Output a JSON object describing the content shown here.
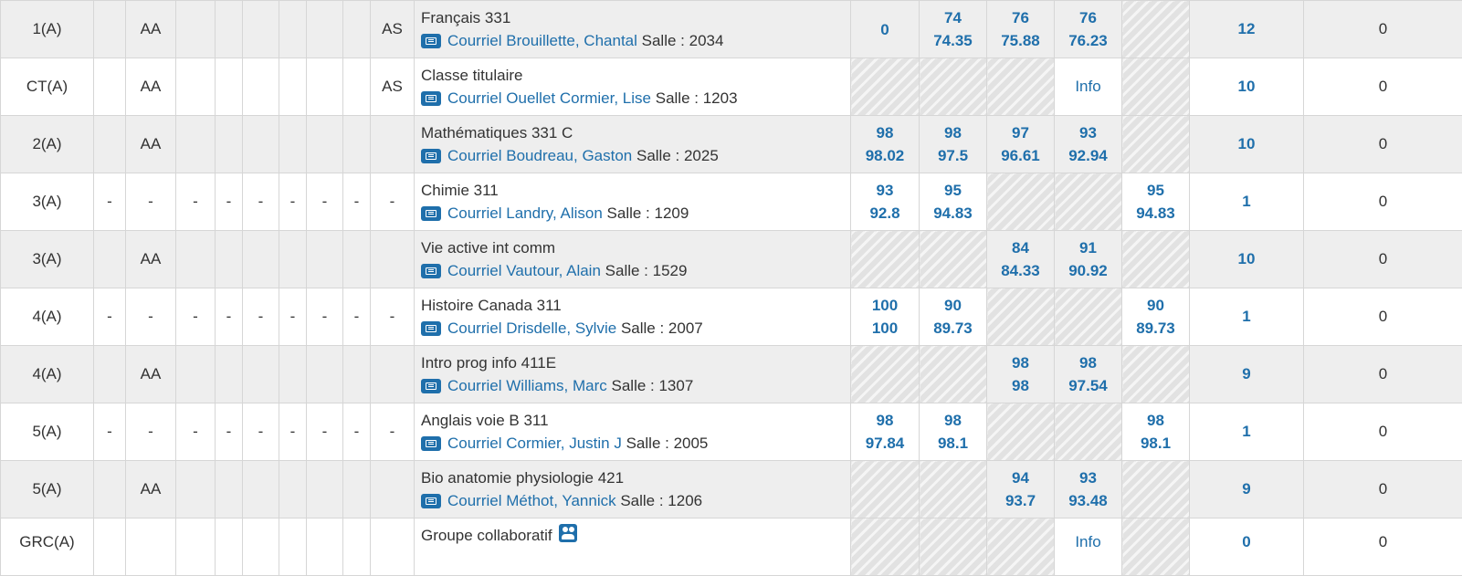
{
  "rows": [
    {
      "period": "1(A)",
      "c1": "",
      "c2": "AA",
      "c3": "",
      "c4": "",
      "c5": "",
      "c6": "",
      "c7": "",
      "c8": "",
      "c9": "AS",
      "course": "Français 331",
      "mail": "Courriel",
      "teacher": "Brouillette, Chantal",
      "room": "Salle : 2034",
      "g1a": "0",
      "g1b": "",
      "g2a": "74",
      "g2b": "74.35",
      "g3a": "76",
      "g3b": "75.88",
      "g4a": "76",
      "g4b": "76.23",
      "g5a": "",
      "g5b": "",
      "stat": "12",
      "last": "0"
    },
    {
      "period": "CT(A)",
      "c1": "",
      "c2": "AA",
      "c3": "",
      "c4": "",
      "c5": "",
      "c6": "",
      "c7": "",
      "c8": "",
      "c9": "AS",
      "course": "Classe titulaire",
      "mail": "Courriel",
      "teacher": "Ouellet Cormier, Lise",
      "room": "Salle : 1203",
      "info": "Info",
      "stat": "10",
      "last": "0"
    },
    {
      "period": "2(A)",
      "c1": "",
      "c2": "AA",
      "c3": "",
      "c4": "",
      "c5": "",
      "c6": "",
      "c7": "",
      "c8": "",
      "c9": "",
      "course": "Mathématiques 331 C",
      "mail": "Courriel",
      "teacher": "Boudreau, Gaston",
      "room": "Salle : 2025",
      "g1a": "98",
      "g1b": "98.02",
      "g2a": "98",
      "g2b": "97.5",
      "g3a": "97",
      "g3b": "96.61",
      "g4a": "93",
      "g4b": "92.94",
      "stat": "10",
      "last": "0"
    },
    {
      "period": "3(A)",
      "c1": "-",
      "c2": "-",
      "c3": "-",
      "c4": "-",
      "c5": "-",
      "c6": "-",
      "c7": "-",
      "c8": "-",
      "c9": "-",
      "course": "Chimie 311",
      "mail": "Courriel",
      "teacher": "Landry, Alison",
      "room": "Salle : 1209",
      "g1a": "93",
      "g1b": "92.8",
      "g2a": "95",
      "g2b": "94.83",
      "g5a": "95",
      "g5b": "94.83",
      "stat": "1",
      "last": "0"
    },
    {
      "period": "3(A)",
      "c1": "",
      "c2": "AA",
      "c3": "",
      "c4": "",
      "c5": "",
      "c6": "",
      "c7": "",
      "c8": "",
      "c9": "",
      "course": "Vie active int comm",
      "mail": "Courriel",
      "teacher": "Vautour, Alain",
      "room": "Salle : 1529",
      "g3a": "84",
      "g3b": "84.33",
      "g4a": "91",
      "g4b": "90.92",
      "stat": "10",
      "last": "0"
    },
    {
      "period": "4(A)",
      "c1": "-",
      "c2": "-",
      "c3": "-",
      "c4": "-",
      "c5": "-",
      "c6": "-",
      "c7": "-",
      "c8": "-",
      "c9": "-",
      "course": "Histoire Canada 311",
      "mail": "Courriel",
      "teacher": "Drisdelle, Sylvie",
      "room": "Salle : 2007",
      "g1a": "100",
      "g1b": "100",
      "g2a": "90",
      "g2b": "89.73",
      "g5a": "90",
      "g5b": "89.73",
      "stat": "1",
      "last": "0"
    },
    {
      "period": "4(A)",
      "c1": "",
      "c2": "AA",
      "c3": "",
      "c4": "",
      "c5": "",
      "c6": "",
      "c7": "",
      "c8": "",
      "c9": "",
      "course": "Intro prog info 411E",
      "mail": "Courriel",
      "teacher": "Williams, Marc",
      "room": "Salle : 1307",
      "g3a": "98",
      "g3b": "98",
      "g4a": "98",
      "g4b": "97.54",
      "stat": "9",
      "last": "0"
    },
    {
      "period": "5(A)",
      "c1": "-",
      "c2": "-",
      "c3": "-",
      "c4": "-",
      "c5": "-",
      "c6": "-",
      "c7": "-",
      "c8": "-",
      "c9": "-",
      "course": "Anglais voie B 311",
      "mail": "Courriel",
      "teacher": "Cormier, Justin J",
      "room": "Salle : 2005",
      "g1a": "98",
      "g1b": "97.84",
      "g2a": "98",
      "g2b": "98.1",
      "g5a": "98",
      "g5b": "98.1",
      "stat": "1",
      "last": "0"
    },
    {
      "period": "5(A)",
      "c1": "",
      "c2": "AA",
      "c3": "",
      "c4": "",
      "c5": "",
      "c6": "",
      "c7": "",
      "c8": "",
      "c9": "",
      "course": "Bio anatomie physiologie 421",
      "mail": "Courriel",
      "teacher": "Méthot, Yannick",
      "room": "Salle : 1206",
      "g3a": "94",
      "g3b": "93.7",
      "g4a": "93",
      "g4b": "93.48",
      "stat": "9",
      "last": "0"
    },
    {
      "period": "GRC(A)",
      "course": "Groupe collaboratif",
      "info": "Info",
      "stat": "0",
      "last": "0"
    }
  ],
  "colors": {
    "accent": "#1f6fab",
    "row_alt": "#eeeeee",
    "border": "#d6d6d6"
  },
  "icons": {
    "mail": "contact-card-icon",
    "group": "group-users-icon"
  }
}
